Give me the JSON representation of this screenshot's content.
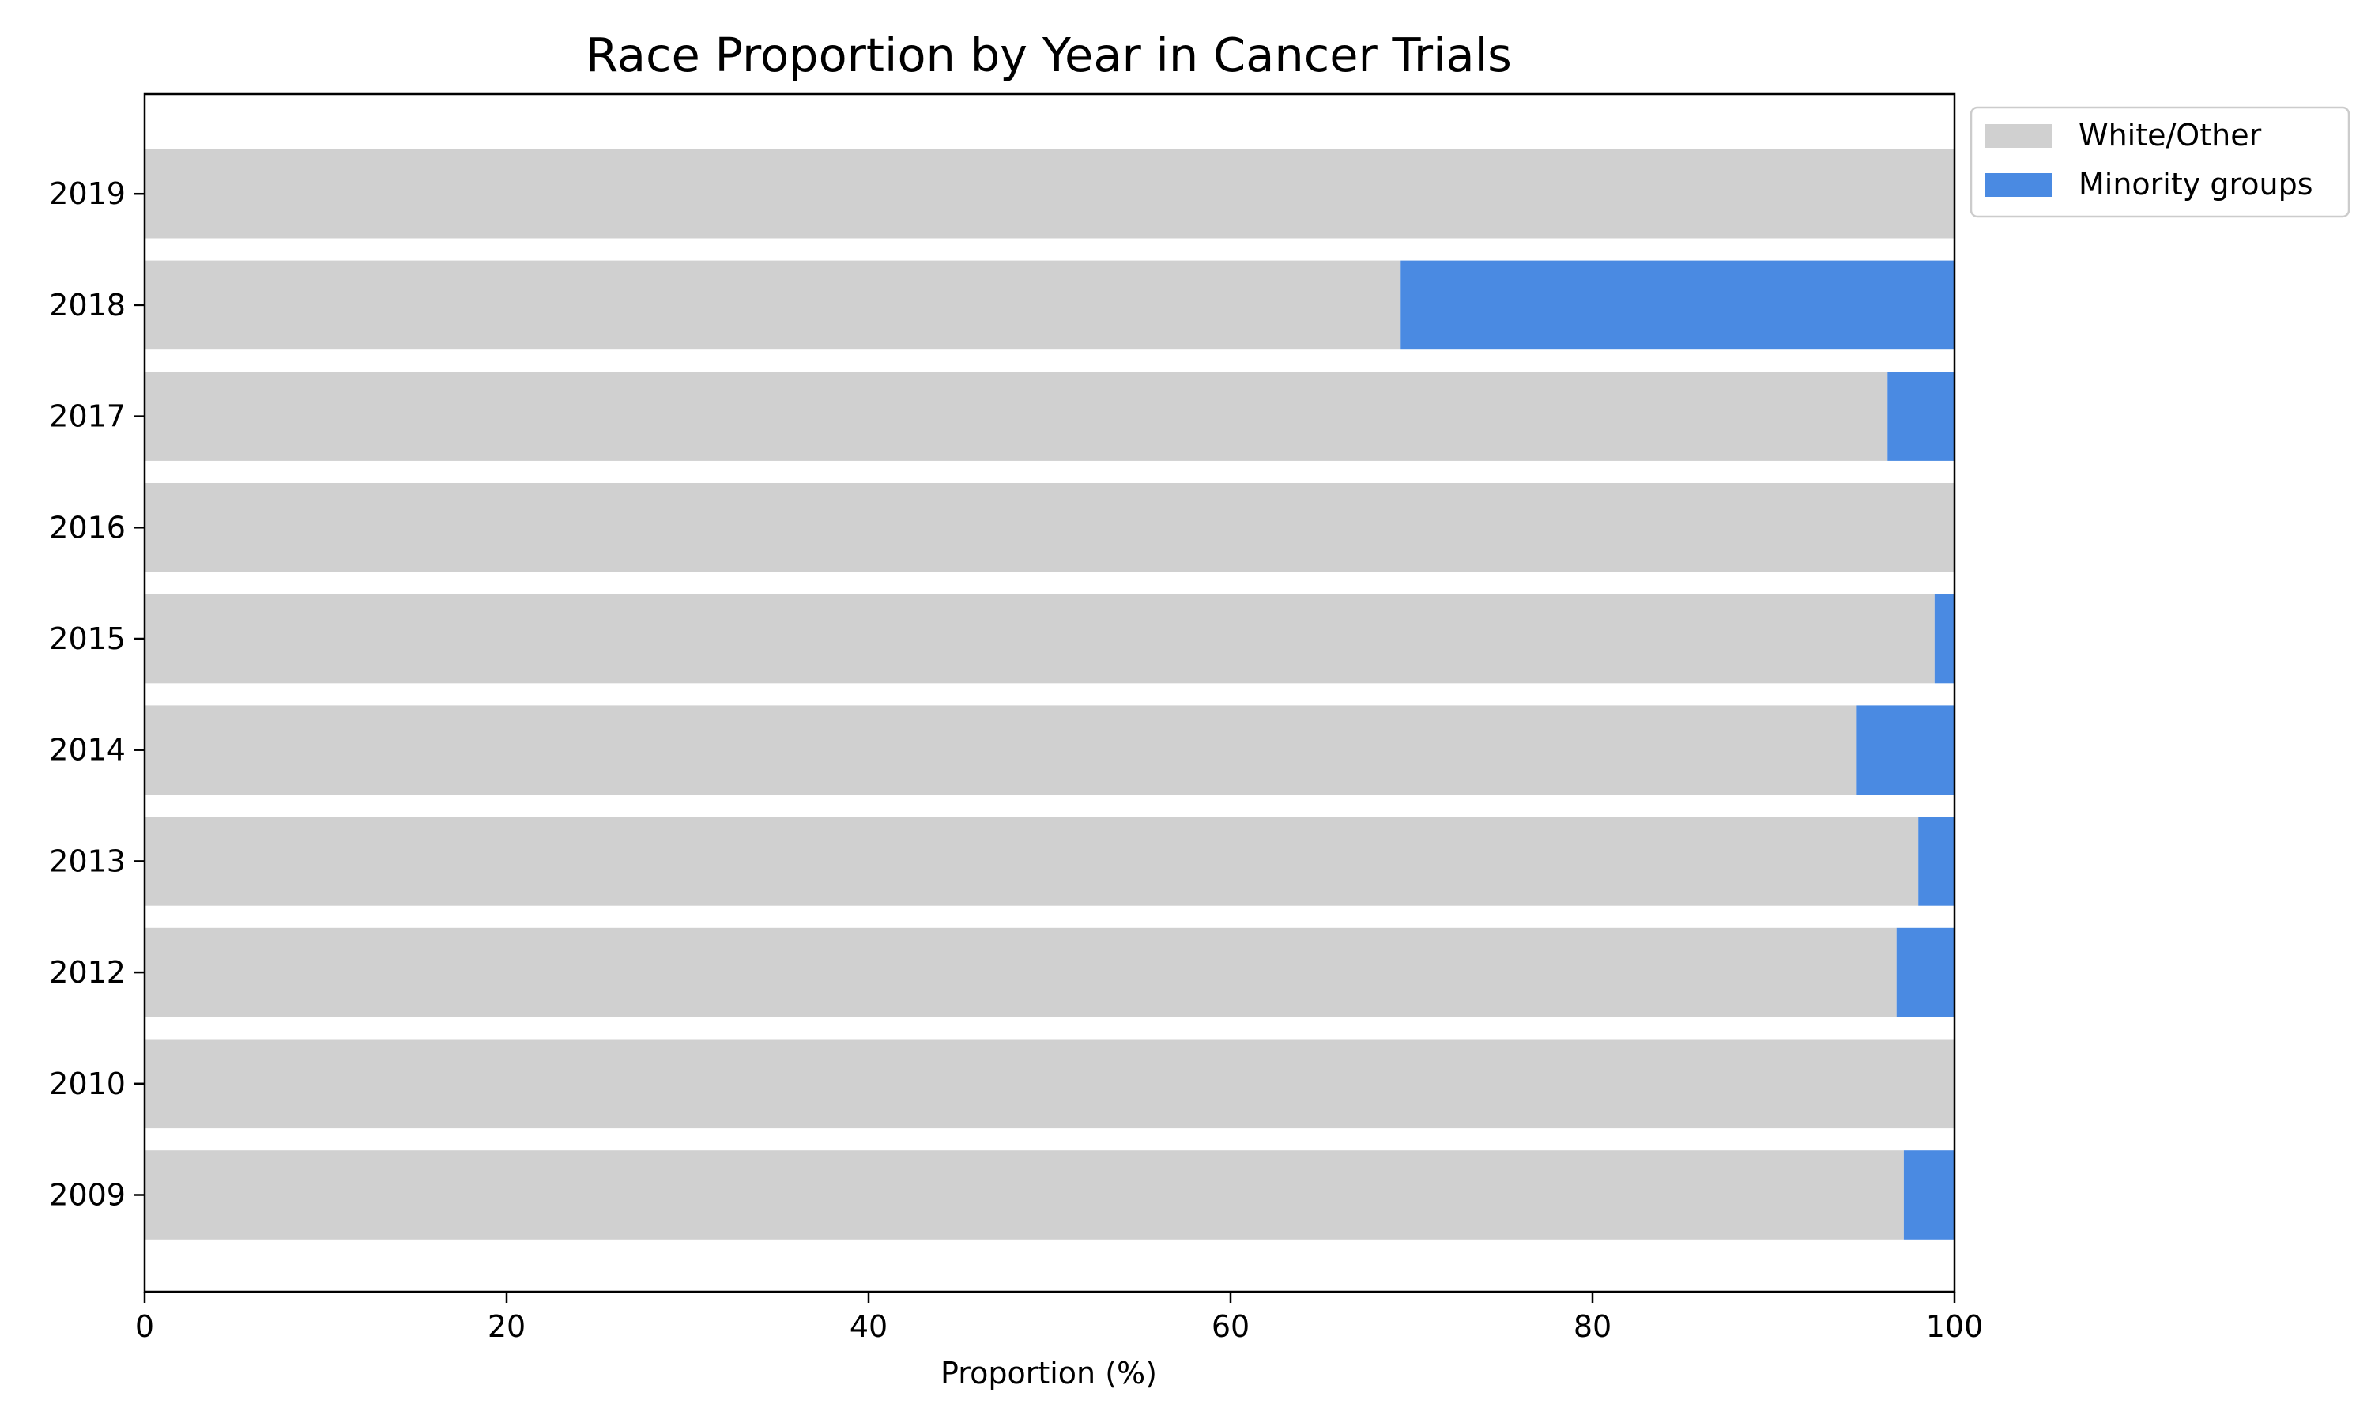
{
  "chart_data": {
    "type": "bar",
    "orientation": "horizontal",
    "stacked": true,
    "title": "Race Proportion by Year in Cancer Trials",
    "xlabel": "Proportion (%)",
    "ylabel": "",
    "xlim": [
      0,
      100
    ],
    "xticks": [
      0,
      20,
      40,
      60,
      80,
      100
    ],
    "xtick_labels": [
      "0",
      "20",
      "40",
      "60",
      "80",
      "100"
    ],
    "categories": [
      "2009",
      "2010",
      "2012",
      "2013",
      "2014",
      "2015",
      "2016",
      "2017",
      "2018",
      "2019"
    ],
    "series": [
      {
        "name": "White/Other",
        "color": "#d0d0d0",
        "values": [
          97.2,
          100,
          96.8,
          98.0,
          94.6,
          98.9,
          100,
          96.3,
          69.4,
          100
        ]
      },
      {
        "name": "Minority groups",
        "color": "#4a8ae2",
        "values": [
          2.8,
          0,
          3.2,
          2.0,
          5.4,
          1.1,
          0,
          3.7,
          30.6,
          0
        ]
      }
    ],
    "grid": false,
    "legend_position": "outside-top-right"
  }
}
